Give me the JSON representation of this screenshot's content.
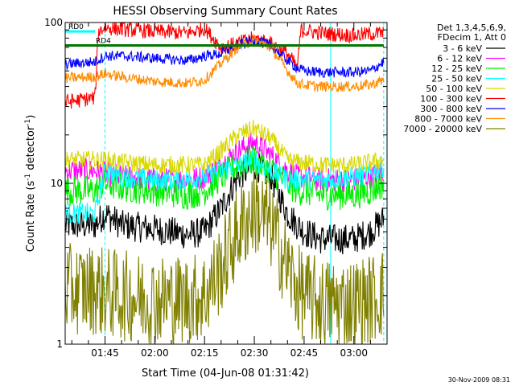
{
  "chart_data": {
    "type": "line",
    "title": "HESSI Observing Summary Count Rates",
    "xlabel": "Start Time (04-Jun-08 01:31:42)",
    "ylabel": "Count Rate (s⁻¹ detector⁻¹)",
    "ylabel_text": "Count Rate (s",
    "ylabel_sup1": "-1",
    "ylabel_mid": " detector",
    "ylabel_sup2": "-1",
    "ylabel_end": ")",
    "yscale": "log",
    "ylim": [
      1,
      100
    ],
    "xlim": [
      "01:33",
      "03:10"
    ],
    "y_ticks": [
      {
        "v": 1,
        "label": "1"
      },
      {
        "v": 10,
        "label": "10"
      },
      {
        "v": 100,
        "label": "100"
      }
    ],
    "x_ticks": [
      {
        "t": "01:45",
        "label": "01:45"
      },
      {
        "t": "02:00",
        "label": "02:00"
      },
      {
        "t": "02:15",
        "label": "02:15"
      },
      {
        "t": "02:30",
        "label": "02:30"
      },
      {
        "t": "02:45",
        "label": "02:45"
      },
      {
        "t": "03:00",
        "label": "03:00"
      }
    ],
    "legend_header": [
      "Det 1,3,4,5,6,9,",
      "FDecim 1, Att 0"
    ],
    "legend_placement": "right",
    "series": [
      {
        "name": "3 - 6 keV",
        "color": "#000000",
        "noise": 0.1,
        "x": [
          "01:33",
          "01:42",
          "01:45",
          "01:50",
          "02:00",
          "02:10",
          "02:15",
          "02:20",
          "02:25",
          "02:30",
          "02:35",
          "02:40",
          "02:43",
          "02:45",
          "02:50",
          "03:00",
          "03:05",
          "03:09"
        ],
        "y": [
          5.5,
          5.5,
          6.5,
          5.5,
          5.2,
          4.8,
          5.0,
          7.0,
          11.0,
          13.0,
          11.0,
          6.5,
          5.5,
          5.0,
          4.5,
          4.5,
          5.0,
          6.0
        ]
      },
      {
        "name": "6 - 12 keV",
        "color": "#ff00ff",
        "noise": 0.08,
        "x": [
          "01:33",
          "01:42",
          "01:45",
          "01:50",
          "02:00",
          "02:10",
          "02:15",
          "02:20",
          "02:25",
          "02:30",
          "02:35",
          "02:40",
          "02:43",
          "02:45",
          "02:50",
          "03:00",
          "03:05",
          "03:09"
        ],
        "y": [
          12,
          12,
          11.5,
          11,
          10.5,
          10.5,
          11,
          13,
          16,
          18,
          15,
          12,
          11,
          11,
          10.5,
          10.5,
          11,
          12
        ]
      },
      {
        "name": "12 - 25 keV",
        "color": "#00ee00",
        "noise": 0.1,
        "x": [
          "01:33",
          "01:42",
          "01:45",
          "01:50",
          "02:00",
          "02:10",
          "02:15",
          "02:20",
          "02:25",
          "02:30",
          "02:35",
          "02:40",
          "02:43",
          "02:45",
          "02:50",
          "03:00",
          "03:05",
          "03:09"
        ],
        "y": [
          9,
          9,
          10,
          9.5,
          9,
          8.5,
          9,
          11,
          13,
          14,
          12,
          10,
          9,
          9,
          8.5,
          8.5,
          9,
          10
        ]
      },
      {
        "name": "25 - 50 keV",
        "color": "#00ffff",
        "noise": 0.07,
        "x": [
          "01:33",
          "01:42",
          "01:45",
          "01:50",
          "02:00",
          "02:10",
          "02:15",
          "02:20",
          "02:25",
          "02:30",
          "02:35",
          "02:40",
          "02:43",
          "02:45",
          "02:50",
          "03:00",
          "03:05",
          "03:09"
        ],
        "y": [
          6.5,
          6.5,
          12,
          11,
          10.5,
          10.5,
          11,
          12,
          13,
          14,
          12,
          10.5,
          10.5,
          10.5,
          10.5,
          11,
          11.5,
          13
        ]
      },
      {
        "name": "50 - 100 keV",
        "color": "#d8d800",
        "noise": 0.06,
        "x": [
          "01:33",
          "01:42",
          "01:45",
          "01:50",
          "02:00",
          "02:10",
          "02:15",
          "02:20",
          "02:25",
          "02:30",
          "02:35",
          "02:40",
          "02:43",
          "02:45",
          "02:50",
          "03:00",
          "03:05",
          "03:09"
        ],
        "y": [
          14,
          14,
          14,
          13.5,
          13,
          13,
          13,
          16,
          20,
          22,
          19,
          14,
          13.5,
          13.5,
          13,
          13,
          13.5,
          14
        ]
      },
      {
        "name": "100 - 300 keV",
        "color": "#ff0000",
        "noise": 0.05,
        "x": [
          "01:33",
          "01:42",
          "01:43",
          "01:45",
          "01:50",
          "02:00",
          "02:10",
          "02:15",
          "02:20",
          "02:25",
          "02:30",
          "02:35",
          "02:40",
          "02:43",
          "02:44",
          "02:50",
          "03:00",
          "03:05",
          "03:09"
        ],
        "y": [
          32,
          34,
          88,
          93,
          91,
          88,
          86,
          92,
          70,
          74,
          80,
          74,
          64,
          52,
          90,
          86,
          83,
          85,
          86
        ]
      },
      {
        "name": "300 - 800 keV",
        "color": "#0000ff",
        "noise": 0.035,
        "x": [
          "01:33",
          "01:42",
          "01:45",
          "01:50",
          "02:00",
          "02:10",
          "02:15",
          "02:20",
          "02:25",
          "02:30",
          "02:35",
          "02:40",
          "02:43",
          "02:45",
          "02:50",
          "03:00",
          "03:05",
          "03:09"
        ],
        "y": [
          55,
          57,
          62,
          62,
          60,
          58,
          62,
          64,
          72,
          78,
          72,
          58,
          52,
          50,
          49,
          49,
          50,
          57
        ]
      },
      {
        "name": "800 - 7000 keV",
        "color": "#ff8c00",
        "noise": 0.035,
        "x": [
          "01:33",
          "01:42",
          "01:45",
          "01:50",
          "02:00",
          "02:10",
          "02:15",
          "02:20",
          "02:25",
          "02:30",
          "02:35",
          "02:40",
          "02:43",
          "02:45",
          "02:50",
          "03:00",
          "03:05",
          "03:09"
        ],
        "y": [
          45,
          46,
          48,
          46,
          43,
          42,
          44,
          56,
          70,
          78,
          70,
          50,
          42,
          41,
          40,
          40,
          41,
          44
        ]
      },
      {
        "name": "7000 - 20000 keV",
        "color": "#808000",
        "noise": 0.3,
        "x": [
          "01:33",
          "01:42",
          "01:45",
          "01:50",
          "02:00",
          "02:10",
          "02:15",
          "02:20",
          "02:25",
          "02:30",
          "02:35",
          "02:40",
          "02:43",
          "02:45",
          "02:50",
          "03:00",
          "03:05",
          "03:09"
        ],
        "y": [
          2.2,
          2.2,
          2.1,
          2.0,
          1.9,
          1.9,
          2.0,
          3.0,
          5.0,
          7.0,
          5.5,
          3.0,
          2.2,
          2.0,
          1.8,
          1.8,
          1.9,
          2.1
        ]
      }
    ],
    "markers": [
      {
        "label": "RD0",
        "color": "#00ffff",
        "y": 88,
        "from": "01:33",
        "to": "01:42"
      },
      {
        "label": "RD4",
        "color": "#007700",
        "y": 72,
        "from": "01:33",
        "to": "03:09"
      }
    ],
    "vlines": [
      {
        "t": "01:33",
        "color": "#00ffff",
        "style": "solid"
      },
      {
        "t": "01:45",
        "color": "#00ffff",
        "style": "dashed"
      },
      {
        "t": "02:53",
        "color": "#00ffff",
        "style": "solid"
      },
      {
        "t": "03:09",
        "color": "#00ffff",
        "style": "dashed"
      }
    ],
    "grid": false
  },
  "footer_date": "30-Nov-2009 08:31"
}
